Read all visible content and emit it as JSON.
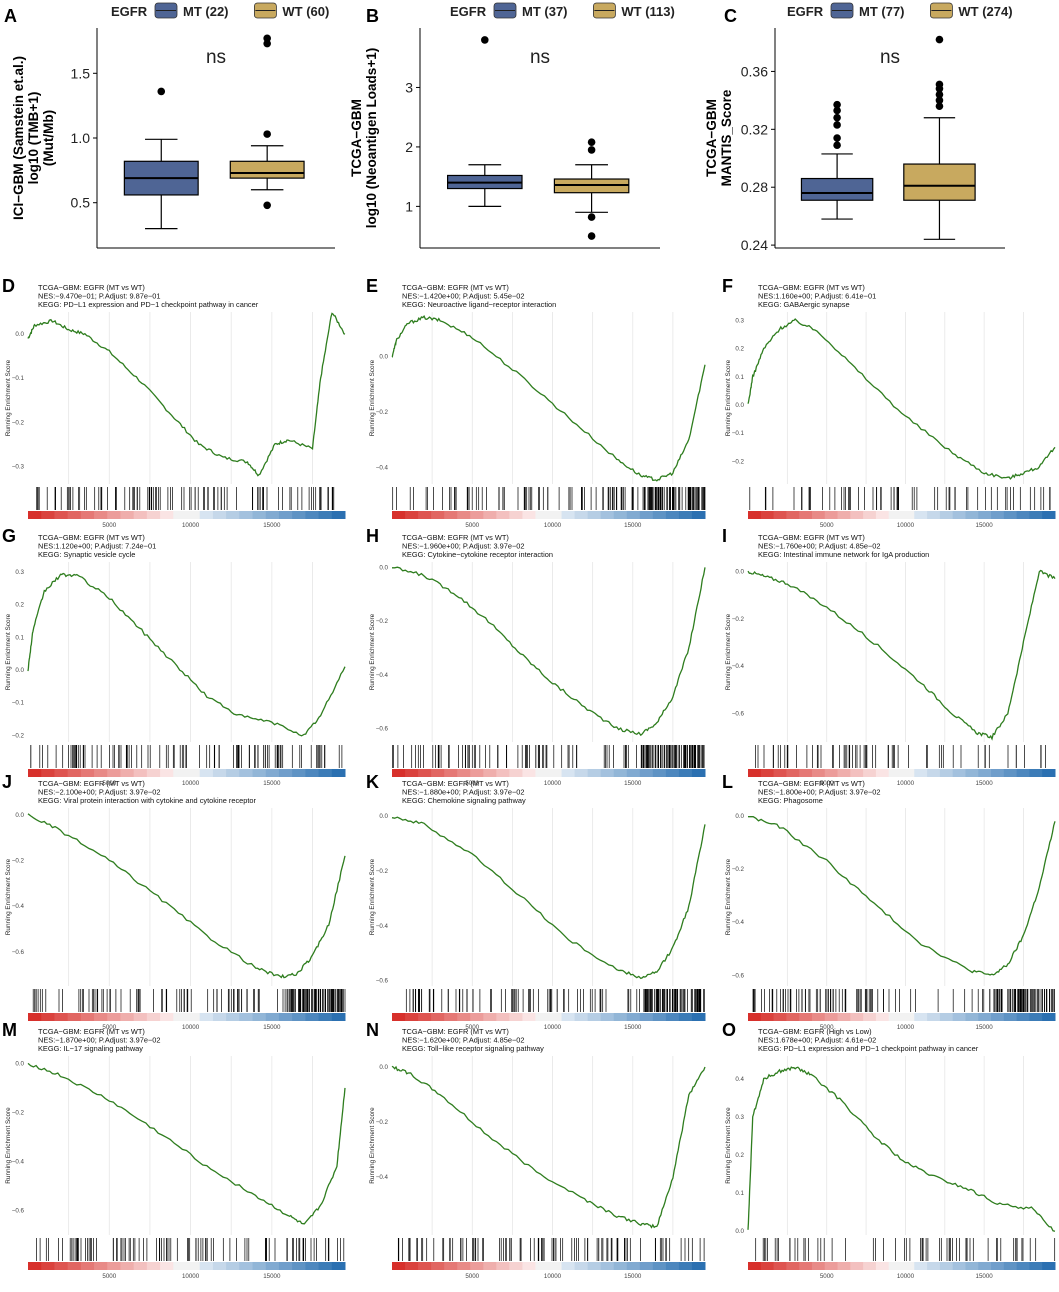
{
  "colors": {
    "mt": "#4f6595",
    "wt": "#c8a95f",
    "curve": "#2e7d1e",
    "red": "#d7302b",
    "blue": "#2b70b1"
  },
  "legend": {
    "title": "EGFR"
  },
  "chart_data": [
    {
      "panel": "A",
      "type": "box",
      "ylabel": [
        "ICI−GBM (Samstein et.al.)",
        "log10 (TMB+1)",
        "(Mut/Mb)"
      ],
      "ylim": [
        0.15,
        1.85
      ],
      "yticks": [
        0.5,
        1.0,
        1.5
      ],
      "ytick_labels": [
        "0.5",
        "1.0",
        "1.5"
      ],
      "annotation": "ns",
      "groups": [
        {
          "name": "MT (22)",
          "q1": 0.56,
          "median": 0.69,
          "q3": 0.82,
          "whisker_low": 0.3,
          "whisker_high": 0.99,
          "outliers": [
            1.36
          ]
        },
        {
          "name": "WT (60)",
          "q1": 0.69,
          "median": 0.73,
          "q3": 0.82,
          "whisker_low": 0.6,
          "whisker_high": 0.94,
          "outliers": [
            1.77,
            1.73,
            1.03,
            0.48
          ]
        }
      ]
    },
    {
      "panel": "B",
      "type": "box",
      "ylabel": [
        "TCGA−GBM",
        "log10 (Neoantigen Loads+1)"
      ],
      "ylim": [
        0.3,
        4.0
      ],
      "yticks": [
        1,
        2,
        3
      ],
      "ytick_labels": [
        "1",
        "2",
        "3"
      ],
      "annotation": "ns",
      "groups": [
        {
          "name": "MT (37)",
          "q1": 1.3,
          "median": 1.4,
          "q3": 1.52,
          "whisker_low": 1.0,
          "whisker_high": 1.7,
          "outliers": [
            3.8
          ]
        },
        {
          "name": "WT (113)",
          "q1": 1.23,
          "median": 1.36,
          "q3": 1.46,
          "whisker_low": 0.9,
          "whisker_high": 1.7,
          "outliers": [
            2.08,
            1.95,
            0.82,
            0.5
          ]
        }
      ]
    },
    {
      "panel": "C",
      "type": "box",
      "ylabel": [
        "TCGA−GBM",
        "MANTIS_Score"
      ],
      "ylim": [
        0.238,
        0.39
      ],
      "yticks": [
        0.24,
        0.28,
        0.32,
        0.36
      ],
      "ytick_labels": [
        "0.24",
        "0.28",
        "0.32",
        "0.36"
      ],
      "annotation": "ns",
      "groups": [
        {
          "name": "MT (77)",
          "q1": 0.271,
          "median": 0.276,
          "q3": 0.286,
          "whisker_low": 0.258,
          "whisker_high": 0.303,
          "outliers": [
            0.337,
            0.333,
            0.328,
            0.323,
            0.314,
            0.309
          ]
        },
        {
          "name": "WT (274)",
          "q1": 0.271,
          "median": 0.281,
          "q3": 0.296,
          "whisker_low": 0.244,
          "whisker_high": 0.328,
          "outliers": [
            0.382,
            0.351,
            0.348,
            0.344,
            0.34,
            0.336
          ]
        }
      ]
    },
    {
      "panel": "D",
      "type": "line",
      "title": [
        "TCGA−GBM: EGFR (MT vs WT)",
        "NES:−9.470e−01; P.Adjust: 9.87e−01",
        "KEGG: PD−L1 expression and PD−1 checkpoint pathway in cancer"
      ],
      "ylabel": "Running Enrichment Score",
      "ylim": [
        -0.34,
        0.05
      ],
      "yticks": [
        0.0,
        -0.1,
        -0.2,
        -0.3
      ],
      "ytick_labels": [
        "0.0",
        "−0.1",
        "−0.2",
        "−0.3"
      ],
      "xticks": [
        5000,
        10000,
        15000
      ],
      "xmax": 19500,
      "x": [
        0,
        400,
        1500,
        2500,
        3500,
        5000,
        7000,
        9000,
        10500,
        12000,
        13500,
        14200,
        15200,
        16000,
        17500,
        18000,
        18700,
        19500
      ],
      "y": [
        -0.01,
        0.02,
        0.03,
        0.01,
        0.0,
        -0.04,
        -0.11,
        -0.19,
        -0.25,
        -0.28,
        -0.29,
        -0.32,
        -0.25,
        -0.24,
        -0.26,
        -0.1,
        0.05,
        0.0
      ],
      "ramp": "red_to_blue",
      "hit_density": "mixed"
    },
    {
      "panel": "E",
      "type": "line",
      "title": [
        "TCGA−GBM: EGFR (MT vs WT)",
        "NES:−1.420e+00; P.Adjust: 5.45e−02",
        "KEGG: Neuroactive ligand−receptor interaction"
      ],
      "ylabel": "Running Enrichment Score",
      "ylim": [
        -0.46,
        0.16
      ],
      "yticks": [
        0.0,
        -0.2,
        -0.4
      ],
      "ytick_labels": [
        "0.0",
        "−0.2",
        "−0.4"
      ],
      "xticks": [
        5000,
        10000,
        15000
      ],
      "xmax": 19500,
      "x": [
        0,
        300,
        1000,
        2000,
        3000,
        5000,
        8000,
        11000,
        14000,
        15500,
        16500,
        17500,
        18500,
        19500
      ],
      "y": [
        0.0,
        0.06,
        0.12,
        0.14,
        0.13,
        0.07,
        -0.07,
        -0.22,
        -0.37,
        -0.43,
        -0.445,
        -0.42,
        -0.3,
        -0.03
      ],
      "ramp": "red_to_blue",
      "hit_density": "dense"
    },
    {
      "panel": "F",
      "type": "line",
      "title": [
        "TCGA−GBM: EGFR (MT vs WT)",
        "NES:1.160e+00; P.Adjust: 6.41e−01",
        "KEGG: GABAergic synapse"
      ],
      "ylabel": "Running Enrichment Score",
      "ylim": [
        -0.28,
        0.33
      ],
      "yticks": [
        0.3,
        0.2,
        0.1,
        0.0,
        -0.1,
        -0.2
      ],
      "ytick_labels": [
        "0.3",
        "0.2",
        "0.1",
        "0.0",
        "−0.1",
        "−0.2"
      ],
      "xticks": [
        5000,
        10000,
        15000
      ],
      "xmax": 19500,
      "x": [
        0,
        300,
        1000,
        2000,
        3000,
        4500,
        7000,
        10000,
        13000,
        15000,
        16500,
        17500,
        18500,
        19500
      ],
      "y": [
        0.0,
        0.1,
        0.2,
        0.27,
        0.3,
        0.26,
        0.12,
        -0.04,
        -0.17,
        -0.24,
        -0.26,
        -0.24,
        -0.22,
        -0.15
      ],
      "ramp": "red_to_blue",
      "hit_density": "sparse"
    },
    {
      "panel": "G",
      "type": "line",
      "title": [
        "TCGA−GBM: EGFR (MT vs WT)",
        "NES:1.120e+00; P.Adjust: 7.24e−01",
        "KEGG: Synaptic vesicle cycle"
      ],
      "ylabel": "Running Enrichment Score",
      "ylim": [
        -0.22,
        0.33
      ],
      "yticks": [
        0.3,
        0.2,
        0.1,
        0.0,
        -0.1,
        -0.2
      ],
      "ytick_labels": [
        "0.3",
        "0.2",
        "0.1",
        "0.0",
        "−0.1",
        "−0.2"
      ],
      "xticks": [
        5000,
        10000,
        15000
      ],
      "xmax": 19500,
      "x": [
        0,
        300,
        1000,
        2000,
        3000,
        5000,
        7000,
        9000,
        11000,
        13000,
        15000,
        17000,
        18000,
        19500
      ],
      "y": [
        0.0,
        0.12,
        0.24,
        0.29,
        0.29,
        0.22,
        0.12,
        0.02,
        -0.08,
        -0.14,
        -0.16,
        -0.2,
        -0.14,
        0.01
      ],
      "ramp": "red_to_blue",
      "hit_density": "mixed"
    },
    {
      "panel": "H",
      "type": "line",
      "title": [
        "TCGA−GBM: EGFR (MT vs WT)",
        "NES:−1.960e+00; P.Adjust: 3.97e−02",
        "KEGG: Cytokine−cytokine receptor interaction"
      ],
      "ylabel": "Running Enrichment Score",
      "ylim": [
        -0.65,
        0.02
      ],
      "yticks": [
        0.0,
        -0.2,
        -0.4,
        -0.6
      ],
      "ytick_labels": [
        "0.0",
        "−0.2",
        "−0.4",
        "−0.6"
      ],
      "xticks": [
        5000,
        10000,
        15000
      ],
      "xmax": 19500,
      "x": [
        0,
        2000,
        4000,
        6000,
        8000,
        10000,
        12000,
        14000,
        15500,
        16500,
        17500,
        18500,
        19500
      ],
      "y": [
        0.0,
        -0.03,
        -0.1,
        -0.2,
        -0.32,
        -0.43,
        -0.52,
        -0.6,
        -0.62,
        -0.58,
        -0.48,
        -0.3,
        0.0
      ],
      "ramp": "red_to_blue",
      "hit_density": "dense"
    },
    {
      "panel": "I",
      "type": "line",
      "title": [
        "TCGA−GBM: EGFR (MT vs WT)",
        "NES:−1.760e+00; P.Adjust: 4.85e−02",
        "KEGG: Intestinal immune network for IgA production"
      ],
      "ylabel": "Running Enrichment Score",
      "ylim": [
        -0.72,
        0.04
      ],
      "yticks": [
        0.0,
        -0.2,
        -0.4,
        -0.6
      ],
      "ytick_labels": [
        "0.0",
        "−0.2",
        "−0.4",
        "−0.6"
      ],
      "xticks": [
        5000,
        10000,
        15000
      ],
      "xmax": 19500,
      "x": [
        0,
        1000,
        2500,
        5000,
        8000,
        11000,
        13000,
        14500,
        15500,
        16500,
        17500,
        18500,
        19500
      ],
      "y": [
        0.0,
        -0.02,
        -0.05,
        -0.15,
        -0.3,
        -0.47,
        -0.6,
        -0.68,
        -0.7,
        -0.6,
        -0.3,
        0.0,
        -0.03
      ],
      "ramp": "red_to_blue",
      "hit_density": "sparse"
    },
    {
      "panel": "J",
      "type": "line",
      "title": [
        "TCGA−GBM: EGFR (MT vs WT)",
        "NES:−2.100e+00; P.Adjust: 3.97e−02",
        "KEGG: Viral protein interaction with cytokine and cytokine receptor"
      ],
      "ylabel": "Running Enrichment Score",
      "ylim": [
        -0.75,
        0.03
      ],
      "yticks": [
        0.0,
        -0.2,
        -0.4,
        -0.6
      ],
      "ytick_labels": [
        "0.0",
        "−0.2",
        "−0.4",
        "−0.6"
      ],
      "xticks": [
        5000,
        10000,
        15000
      ],
      "xmax": 19500,
      "x": [
        0,
        2000,
        5000,
        8000,
        11000,
        14000,
        15500,
        16500,
        17500,
        18500,
        19500
      ],
      "y": [
        0.0,
        -0.07,
        -0.2,
        -0.36,
        -0.53,
        -0.67,
        -0.71,
        -0.7,
        -0.62,
        -0.48,
        -0.18
      ],
      "ramp": "red_to_blue",
      "hit_density": "dense"
    },
    {
      "panel": "K",
      "type": "line",
      "title": [
        "TCGA−GBM: EGFR (MT vs WT)",
        "NES:−1.880e+00; P.Adjust: 3.97e−02",
        "KEGG: Chemokine signaling pathway"
      ],
      "ylabel": "Running Enrichment Score",
      "ylim": [
        -0.62,
        0.03
      ],
      "yticks": [
        0.0,
        -0.2,
        -0.4,
        -0.6
      ],
      "ytick_labels": [
        "0.0",
        "−0.2",
        "−0.4",
        "−0.6"
      ],
      "xticks": [
        5000,
        10000,
        15000
      ],
      "xmax": 19500,
      "x": [
        0,
        2000,
        5000,
        8000,
        11000,
        14000,
        15500,
        16500,
        17500,
        18500,
        19500
      ],
      "y": [
        0.0,
        -0.03,
        -0.14,
        -0.29,
        -0.45,
        -0.56,
        -0.59,
        -0.57,
        -0.48,
        -0.33,
        -0.03
      ],
      "ramp": "red_to_blue",
      "hit_density": "dense"
    },
    {
      "panel": "L",
      "type": "line",
      "title": [
        "TCGA−GBM: EGFR (MT vs WT)",
        "NES:−1.800e+00; P.Adjust: 3.97e−02",
        "KEGG: Phagosome"
      ],
      "ylabel": "Running Enrichment Score",
      "ylim": [
        -0.64,
        0.03
      ],
      "yticks": [
        0.0,
        -0.2,
        -0.4,
        -0.6
      ],
      "ytick_labels": [
        "0.0",
        "−0.2",
        "−0.4",
        "−0.6"
      ],
      "xticks": [
        5000,
        10000,
        15000
      ],
      "xmax": 19500,
      "x": [
        0,
        2000,
        5000,
        8000,
        11000,
        14000,
        15500,
        16500,
        17500,
        18500,
        19500
      ],
      "y": [
        0.0,
        -0.04,
        -0.17,
        -0.33,
        -0.48,
        -0.58,
        -0.6,
        -0.56,
        -0.45,
        -0.27,
        -0.02
      ],
      "ramp": "red_to_blue",
      "hit_density": "dense"
    },
    {
      "panel": "M",
      "type": "line",
      "title": [
        "TCGA−GBM: EGFR (MT vs WT)",
        "NES:−1.870e+00; P.Adjust: 3.97e−02",
        "KEGG: IL−17 signaling pathway"
      ],
      "ylabel": "Running Enrichment Score",
      "ylim": [
        -0.7,
        0.03
      ],
      "yticks": [
        0.0,
        -0.2,
        -0.4,
        -0.6
      ],
      "ytick_labels": [
        "0.0",
        "−0.2",
        "−0.4",
        "−0.6"
      ],
      "xticks": [
        5000,
        10000,
        15000
      ],
      "xmax": 19500,
      "x": [
        0,
        2000,
        5000,
        8000,
        11000,
        14000,
        16000,
        17000,
        18000,
        19000,
        19500
      ],
      "y": [
        0.0,
        -0.05,
        -0.15,
        -0.28,
        -0.42,
        -0.54,
        -0.62,
        -0.66,
        -0.58,
        -0.42,
        -0.1
      ],
      "ramp": "red_to_blue",
      "hit_density": "mixed"
    },
    {
      "panel": "N",
      "type": "line",
      "title": [
        "TCGA−GBM: EGFR (MT vs WT)",
        "NES:−1.620e+00; P.Adjust: 4.85e−02",
        "KEGG: Toll−like receptor signaling pathway"
      ],
      "ylabel": "Running Enrichment Score",
      "ylim": [
        -0.61,
        0.04
      ],
      "yticks": [
        0.0,
        -0.2,
        -0.4
      ],
      "ytick_labels": [
        "0.0",
        "−0.2",
        "−0.4"
      ],
      "xticks": [
        5000,
        10000,
        15000
      ],
      "xmax": 19500,
      "x": [
        0,
        1000,
        3000,
        6000,
        9000,
        12000,
        14000,
        15500,
        16500,
        17500,
        18500,
        19500
      ],
      "y": [
        0.0,
        -0.02,
        -0.1,
        -0.25,
        -0.38,
        -0.48,
        -0.54,
        -0.57,
        -0.58,
        -0.4,
        -0.1,
        0.0
      ],
      "ramp": "red_to_blue",
      "hit_density": "mixed"
    },
    {
      "panel": "O",
      "type": "line",
      "title": [
        "TCGA−GBM: EGFR (High vs Low)",
        "NES:1.678e+00; P.Adjust: 4.61e−02",
        "KEGG: PD−L1 expression and PD−1 checkpoint pathway in cancer"
      ],
      "ylabel": "Running Enrichment Score",
      "ylim": [
        -0.01,
        0.46
      ],
      "yticks": [
        0.4,
        0.3,
        0.2,
        0.1,
        0.0
      ],
      "ytick_labels": [
        "0.4",
        "0.3",
        "0.2",
        "0.1",
        "0.0"
      ],
      "xticks": [
        5000,
        10000,
        15000
      ],
      "xmax": 19500,
      "x": [
        0,
        300,
        1000,
        2000,
        3000,
        4000,
        6000,
        8000,
        10000,
        12000,
        14000,
        16000,
        18000,
        19500
      ],
      "y": [
        0.0,
        0.3,
        0.4,
        0.42,
        0.43,
        0.41,
        0.34,
        0.25,
        0.18,
        0.14,
        0.11,
        0.07,
        0.06,
        0.0
      ],
      "ramp": "red_to_blue",
      "hit_density": "sparse"
    }
  ]
}
